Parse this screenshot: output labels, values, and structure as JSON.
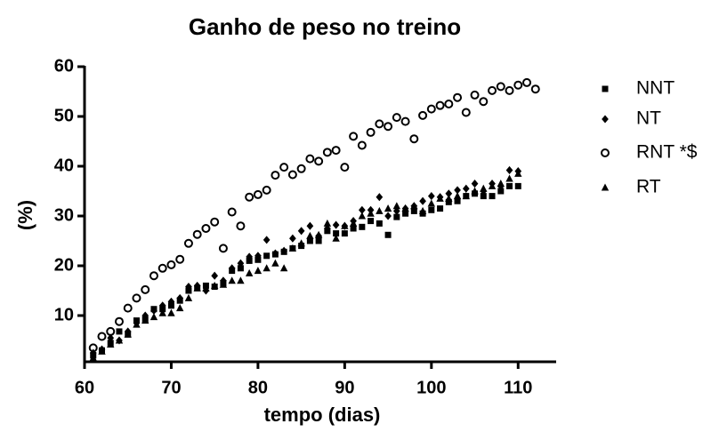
{
  "chart_data": {
    "type": "scatter",
    "title": "Ganho de peso no treino",
    "xlabel": "tempo (dias)",
    "ylabel": "(%)",
    "x": [
      61,
      62,
      63,
      64,
      65,
      66,
      67,
      68,
      69,
      70,
      71,
      72,
      73,
      74,
      75,
      76,
      77,
      78,
      79,
      80,
      81,
      82,
      83,
      84,
      85,
      86,
      87,
      88,
      89,
      90,
      91,
      92,
      93,
      94,
      95,
      96,
      97,
      98,
      99,
      100,
      101,
      102,
      103,
      104,
      105,
      106,
      107,
      108,
      109,
      110,
      111,
      112
    ],
    "series": [
      {
        "name": "NNT",
        "color": "#000000",
        "marker": "square",
        "values": [
          2,
          3,
          4.5,
          6.8,
          6.2,
          9,
          9.2,
          11.3,
          11.3,
          12,
          13,
          15,
          15.5,
          16,
          15.8,
          16.5,
          19,
          19.5,
          21,
          21.2,
          22,
          22.3,
          22.8,
          23.5,
          24,
          25,
          25,
          27,
          26.5,
          26.5,
          27.5,
          27.8,
          29,
          28.5,
          26.2,
          29.8,
          30.5,
          31,
          30.5,
          31.2,
          31.5,
          32.8,
          33,
          34,
          34.5,
          34,
          34,
          35,
          36,
          36,
          null,
          null
        ]
      },
      {
        "name": "NT",
        "color": "#000000",
        "marker": "diamond",
        "values": [
          2.5,
          3.2,
          5.5,
          5,
          6.8,
          8.5,
          10,
          11,
          12,
          12.8,
          13.5,
          15.8,
          16,
          15,
          18,
          17,
          19.5,
          20.5,
          21.8,
          22,
          25.2,
          22.5,
          23,
          25.5,
          27,
          28,
          26,
          27.5,
          28.2,
          28,
          29,
          31.2,
          31.2,
          33.8,
          30,
          31,
          31.5,
          32,
          33,
          34,
          33.8,
          34.5,
          35.2,
          35.5,
          36.5,
          35,
          36.5,
          36,
          39.2,
          39,
          null,
          null
        ]
      },
      {
        "name": "RNT *$",
        "color": "#000000",
        "marker": "circle",
        "values": [
          3.5,
          5.8,
          6.8,
          8.8,
          11.5,
          13.5,
          15.2,
          18,
          19.5,
          20.2,
          21.3,
          24.5,
          26.3,
          27.5,
          28.8,
          23.5,
          30.8,
          28,
          33.8,
          34.3,
          35.2,
          38.2,
          39.8,
          38.3,
          39.5,
          41.5,
          41,
          42.8,
          43.2,
          39.8,
          46,
          44.2,
          46.8,
          48.5,
          48,
          49.8,
          49,
          45.5,
          50.2,
          51.5,
          52.2,
          52.5,
          53.8,
          50.8,
          54.3,
          53,
          55.2,
          56,
          55.2,
          56.3,
          56.8,
          55.5
        ]
      },
      {
        "name": "RT",
        "color": "#000000",
        "marker": "triangle",
        "values": [
          1.5,
          2.8,
          4.2,
          5,
          6.2,
          8.2,
          9,
          9.7,
          10.5,
          10.5,
          11.5,
          13.5,
          15.5,
          15.5,
          16,
          16.2,
          17,
          17,
          18.5,
          19,
          19.5,
          20.5,
          19.5,
          23.5,
          24.5,
          26,
          26.2,
          28.5,
          25.5,
          28,
          28.5,
          30,
          30.5,
          31,
          31.5,
          32,
          31.5,
          32,
          31,
          32.5,
          33.5,
          33.5,
          34,
          34,
          35,
          35.5,
          36,
          36.5,
          37.5,
          38.5,
          null,
          null
        ]
      }
    ],
    "xlim": [
      60,
      115
    ],
    "xticks": [
      60,
      70,
      80,
      90,
      100,
      110
    ],
    "ylim": [
      0,
      60
    ],
    "yticks": [
      10,
      20,
      30,
      40,
      50,
      60
    ],
    "grid": false,
    "legend": "right"
  }
}
